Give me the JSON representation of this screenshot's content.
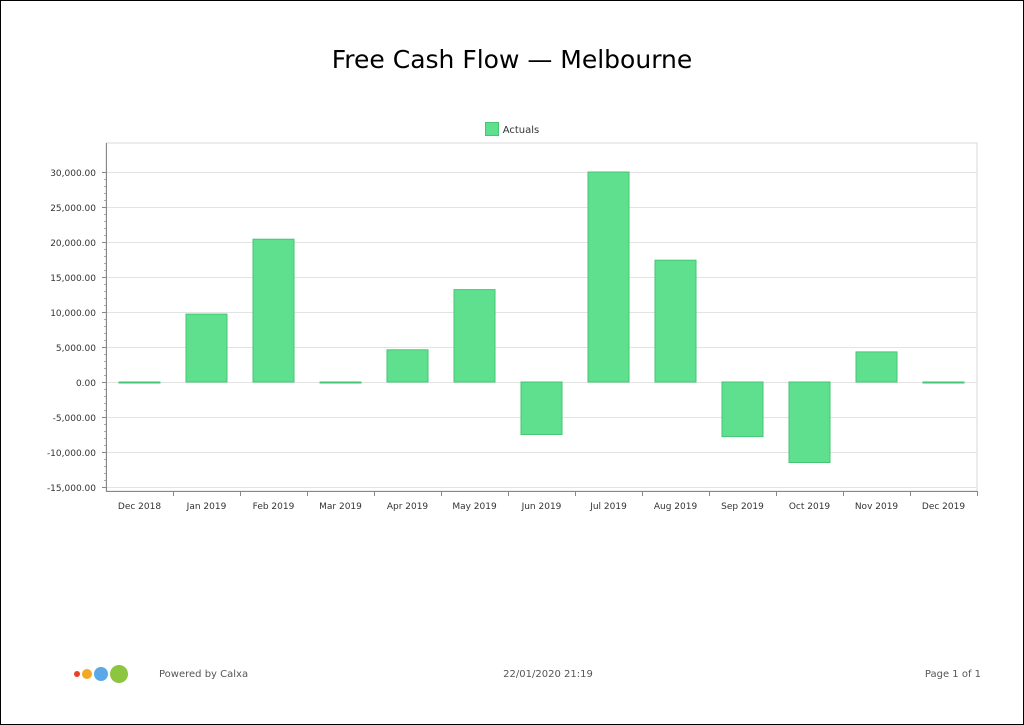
{
  "report": {
    "title": "Free Cash Flow — Melbourne",
    "powered_by": "Powered by Calxa",
    "timestamp": "22/01/2020 21:19",
    "page": "Page 1 of 1",
    "logo_dot_colors": [
      "#e8412c",
      "#f5a623",
      "#5aa9e6",
      "#8cc63f"
    ]
  },
  "chart_data": {
    "type": "bar",
    "legend_position": "top-center",
    "grid": true,
    "categories": [
      "Dec 2018",
      "Jan 2019",
      "Feb 2019",
      "Mar 2019",
      "Apr 2019",
      "May 2019",
      "Jun 2019",
      "Jul 2019",
      "Aug 2019",
      "Sep 2019",
      "Oct 2019",
      "Nov 2019",
      "Dec 2019"
    ],
    "series": [
      {
        "name": "Actuals",
        "color": "#5ee08f",
        "values": [
          0,
          9700,
          20400,
          0,
          4600,
          13200,
          -7500,
          30000,
          17400,
          -7800,
          -11500,
          4300,
          0
        ]
      }
    ],
    "ylim": [
      -15000,
      30000
    ],
    "yticks": [
      -15000,
      -10000,
      -5000,
      0,
      5000,
      10000,
      15000,
      20000,
      25000,
      30000
    ],
    "ytick_labels": [
      "-15,000.00",
      "-10,000.00",
      "-5,000.00",
      "0.00",
      "5,000.00",
      "10,000.00",
      "15,000.00",
      "20,000.00",
      "25,000.00",
      "30,000.00"
    ]
  }
}
